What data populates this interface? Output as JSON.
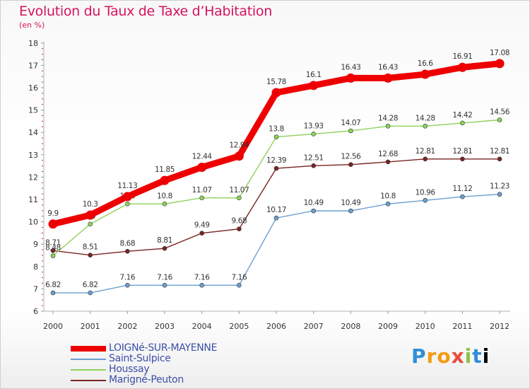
{
  "header": {
    "title": "Evolution du Taux de Taxe d’Habitation",
    "unit": "(en %)"
  },
  "logo": {
    "text": "Proxiti"
  },
  "chart_data": {
    "type": "line",
    "x": [
      "2000",
      "2001",
      "2002",
      "2003",
      "2004",
      "2005",
      "2006",
      "2007",
      "2008",
      "2009",
      "2010",
      "2011",
      "2012"
    ],
    "ylim": [
      6,
      18
    ],
    "yticks": [
      "6",
      "7",
      "8",
      "9",
      "10",
      "11",
      "12",
      "13",
      "14",
      "15",
      "16",
      "17",
      "18"
    ],
    "grid": false,
    "legend_position": "bottom-left",
    "series": [
      {
        "name": "LOIGNé-SUR-MAYENNE",
        "color": "#ee0000",
        "values": [
          9.9,
          10.3,
          11.13,
          11.85,
          12.44,
          12.94,
          15.78,
          16.1,
          16.43,
          16.43,
          16.6,
          16.91,
          17.08
        ],
        "labels": [
          "9.9",
          "10.3",
          "11.13",
          "11.85",
          "12.44",
          "12.94",
          "15.78",
          "16.1",
          "16.43",
          "16.43",
          "16.6",
          "16.91",
          "17.08"
        ]
      },
      {
        "name": "Saint-Sulpice",
        "color": "#6b9fcf",
        "values": [
          6.82,
          6.82,
          7.16,
          7.16,
          7.16,
          7.16,
          10.17,
          10.49,
          10.49,
          10.8,
          10.96,
          11.12,
          11.23
        ],
        "labels": [
          "6.82",
          "6.82",
          "7.16",
          "7.16",
          "7.16",
          "7.16",
          "10.17",
          "10.49",
          "10.49",
          "10.8",
          "10.96",
          "11.12",
          "11.23"
        ]
      },
      {
        "name": "Houssay",
        "color": "#8fd15a",
        "values": [
          8.48,
          9.9,
          10.8,
          10.8,
          11.07,
          11.07,
          13.8,
          13.93,
          14.07,
          14.28,
          14.28,
          14.42,
          14.56
        ],
        "labels": [
          "8.48",
          "9.9",
          "10.8",
          "10.8",
          "11.07",
          "11.07",
          "13.8",
          "13.93",
          "14.07",
          "14.28",
          "14.28",
          "14.42",
          "14.56"
        ]
      },
      {
        "name": "Marigné-Peuton",
        "color": "#7a2424",
        "values": [
          8.71,
          8.51,
          8.68,
          8.81,
          9.49,
          9.68,
          12.39,
          12.51,
          12.56,
          12.68,
          12.81,
          12.81,
          12.81
        ],
        "labels": [
          "8.71",
          "8.51",
          "8.68",
          "8.81",
          "9.49",
          "9.68",
          "12.39",
          "12.51",
          "12.56",
          "12.68",
          "12.81",
          "12.81",
          "12.81"
        ]
      }
    ]
  }
}
